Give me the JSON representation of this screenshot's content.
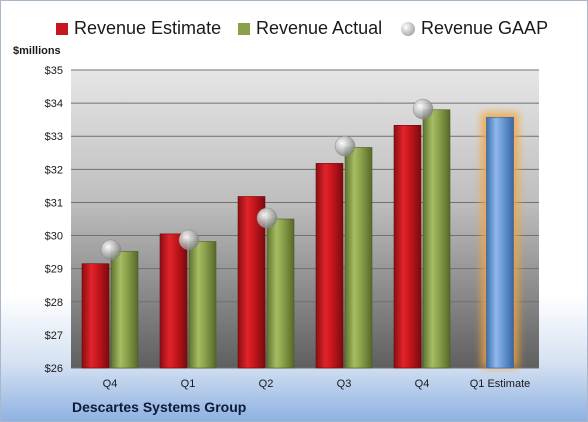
{
  "legend": {
    "estimate": "Revenue Estimate",
    "actual": "Revenue Actual",
    "gaap": "Revenue GAAP"
  },
  "footer": {
    "company": "Descartes Systems Group"
  },
  "colors": {
    "estimate": "#c4161c",
    "actual": "#8aa04a",
    "gaap": "#b8b8b8",
    "forecast": "#6a9ad6",
    "forecast_glow": "#f4a53a"
  },
  "chart_data": {
    "type": "bar",
    "ylabel": "$millions",
    "ylim": [
      26,
      35
    ],
    "yticks": [
      "$26",
      "$27",
      "$28",
      "$29",
      "$30",
      "$31",
      "$32",
      "$33",
      "$34",
      "$35"
    ],
    "categories": [
      "Q4",
      "Q1",
      "Q2",
      "Q3",
      "Q4",
      "Q1 Estimate"
    ],
    "series": [
      {
        "name": "Revenue Estimate",
        "values": [
          29.15,
          30.05,
          31.18,
          32.18,
          33.33,
          null
        ]
      },
      {
        "name": "Revenue Actual",
        "values": [
          29.52,
          29.82,
          30.5,
          32.66,
          33.8,
          33.57
        ]
      },
      {
        "name": "Revenue GAAP",
        "type": "bubble",
        "values": [
          29.57,
          29.87,
          30.53,
          32.7,
          33.82,
          null
        ]
      }
    ],
    "grid": true,
    "legend_position": "top"
  }
}
